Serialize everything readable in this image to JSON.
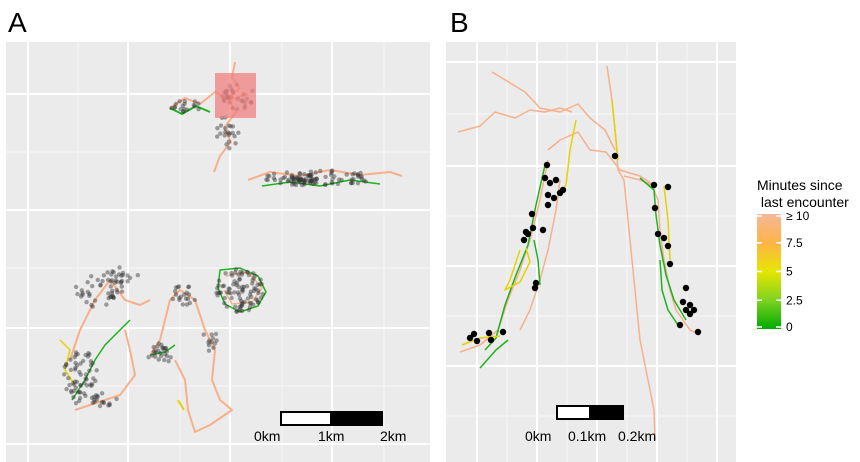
{
  "chart_data": [
    {
      "type": "scatter",
      "panel_label": "A",
      "grid": true,
      "scalebar": {
        "labels": [
          "0km",
          "1km",
          "2km"
        ]
      },
      "highlight_box": {
        "color": "#f08080"
      }
    },
    {
      "type": "scatter",
      "panel_label": "B",
      "grid": true,
      "scalebar": {
        "labels": [
          "0km",
          "0.1km",
          "0.2km"
        ]
      },
      "encounter_points_color": "#000000"
    }
  ],
  "legend": {
    "title_line1": "Minutes since",
    "title_line2": " last encounter",
    "ticks": [
      "≥ 10",
      "7.5",
      "5",
      "2.5",
      "0"
    ],
    "tick_values": [
      10,
      7.5,
      5,
      2.5,
      0
    ],
    "colors": [
      "#00aa00",
      "#7ed321",
      "#e6e600",
      "#ffb347",
      "#f4b899"
    ]
  }
}
